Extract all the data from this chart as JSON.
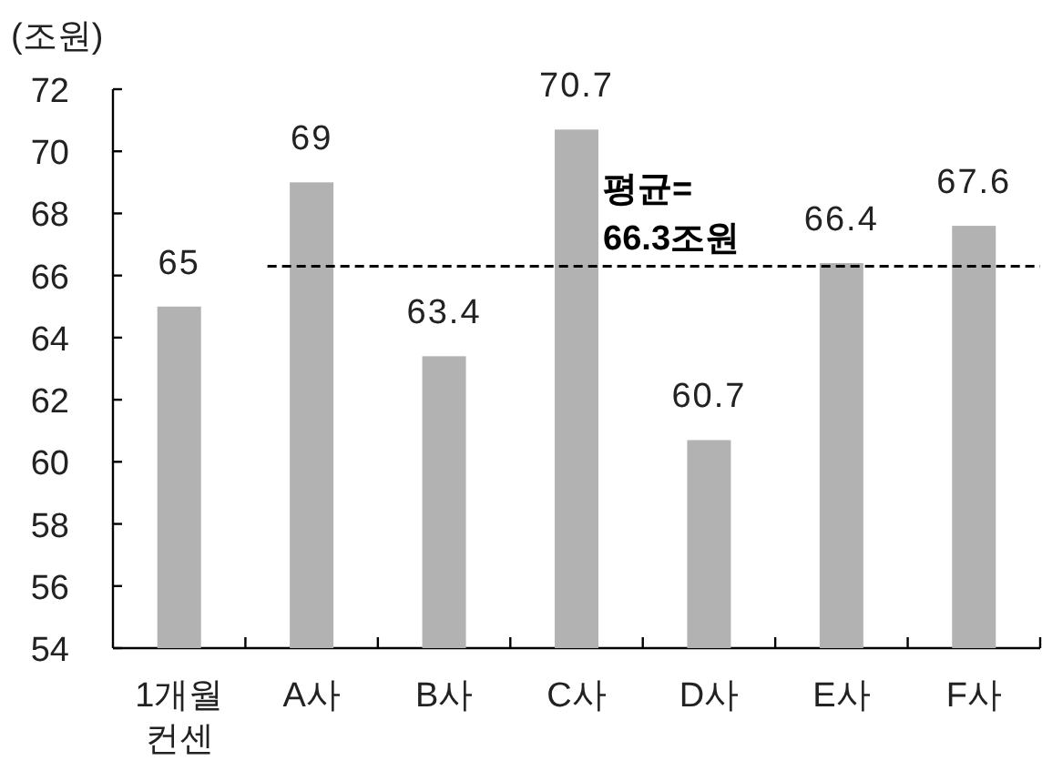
{
  "chart_data": {
    "type": "bar",
    "ylabel": "(조원)",
    "categories": [
      "1개월\n컨센",
      "A사",
      "B사",
      "C사",
      "D사",
      "E사",
      "F사"
    ],
    "values": [
      65,
      69,
      63.4,
      70.7,
      60.7,
      66.4,
      67.6
    ],
    "color": "#b2b2b2",
    "ylim": [
      54,
      72
    ],
    "yticks": [
      54,
      56,
      58,
      60,
      62,
      64,
      66,
      68,
      70,
      72
    ],
    "data_labels": true,
    "ref_lines": [
      {
        "axis": "y",
        "value": 66.3,
        "label": "평균=\n66.3조원",
        "color": "#000000",
        "line_style": "dashed"
      }
    ]
  }
}
